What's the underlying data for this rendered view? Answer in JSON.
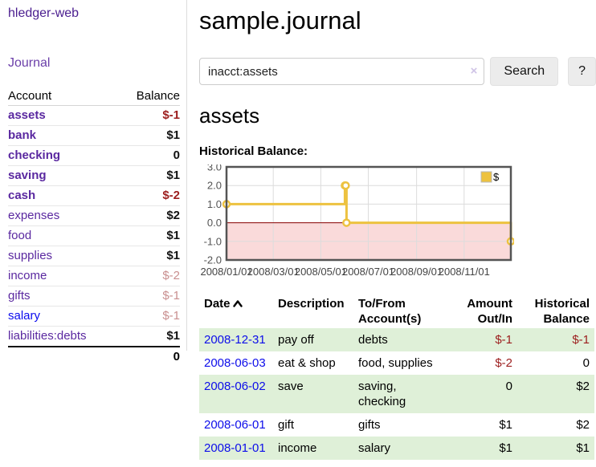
{
  "colors": {
    "purple_link": "#5a28a0",
    "blue_link": "#0b0bee",
    "negative_red": "#9c1d1d",
    "dim_negative_rose": "#c98f8f",
    "row_green": "#dff0d8",
    "chart_line_gold": "#edc240",
    "chart_negative_region_pink": "#fadada",
    "chart_zero_line": "#8b0000"
  },
  "sidebar": {
    "app_title": "hledger-web",
    "journal_link": "Journal",
    "accounts": {
      "headers": {
        "account": "Account",
        "balance": "Balance"
      },
      "rows": [
        {
          "name": "assets",
          "level": 1,
          "bold": true,
          "balance": "$-1",
          "balance_style": "neg"
        },
        {
          "name": "bank",
          "level": 2,
          "bold": true,
          "balance": "$1",
          "balance_style": "pos"
        },
        {
          "name": "checking",
          "level": 3,
          "bold": true,
          "balance": "0",
          "balance_style": "pos"
        },
        {
          "name": "saving",
          "level": 3,
          "bold": true,
          "balance": "$1",
          "balance_style": "pos"
        },
        {
          "name": "cash",
          "level": 2,
          "bold": true,
          "balance": "$-2",
          "balance_style": "neg"
        },
        {
          "name": "expenses",
          "level": 1,
          "bold": false,
          "balance": "$2",
          "balance_style": "pos"
        },
        {
          "name": "food",
          "level": 2,
          "bold": false,
          "balance": "$1",
          "balance_style": "pos"
        },
        {
          "name": "supplies",
          "level": 2,
          "bold": false,
          "balance": "$1",
          "balance_style": "pos"
        },
        {
          "name": "income",
          "level": 1,
          "bold": false,
          "balance": "$-2",
          "balance_style": "dimneg"
        },
        {
          "name": "gifts",
          "level": 2,
          "bold": false,
          "balance": "$-1",
          "balance_style": "dimneg"
        },
        {
          "name": "salary",
          "level": 2,
          "bold": false,
          "unvisited": true,
          "balance": "$-1",
          "balance_style": "dimneg"
        },
        {
          "name": "liabilities:debts",
          "level": 1,
          "bold": false,
          "balance": "$1",
          "balance_style": "pos"
        }
      ],
      "total": "0"
    }
  },
  "header": {
    "title": "sample.journal"
  },
  "search": {
    "value": "inacct:assets",
    "clear_icon": "×",
    "button_label": "Search",
    "help_label": "?"
  },
  "account_page": {
    "title": "assets",
    "chart_label": "Historical Balance:"
  },
  "chart_data": {
    "type": "line",
    "subtype": "step",
    "title": "Historical Balance:",
    "series": [
      {
        "name": "$",
        "points": [
          [
            "2008-01-01",
            1
          ],
          [
            "2008-06-01",
            2
          ],
          [
            "2008-06-02",
            2
          ],
          [
            "2008-06-03",
            0
          ],
          [
            "2008-12-31",
            -1
          ]
        ]
      }
    ],
    "x_ticks": [
      "2008/01/01",
      "2008/03/01",
      "2008/05/01",
      "2008/07/01",
      "2008/09/01",
      "2008/11/01"
    ],
    "y_ticks": [
      "3.0",
      "2.0",
      "1.0",
      "0.0",
      "-1.0",
      "-2.0"
    ],
    "ylim": [
      -2.0,
      3.0
    ],
    "xlim": [
      "2008-01-01",
      "2008-12-31"
    ],
    "grid": true,
    "legend_position": "top-right",
    "negative_region_shaded": true
  },
  "transactions": {
    "headers": [
      {
        "line1": "Date",
        "line2": "",
        "align": "left",
        "sorted_asc": true
      },
      {
        "line1": "Description",
        "line2": "",
        "align": "left"
      },
      {
        "line1": "To/From",
        "line2": "Account(s)",
        "align": "left"
      },
      {
        "line1": "Amount",
        "line2": "Out/In",
        "align": "right"
      },
      {
        "line1": "Historical",
        "line2": "Balance",
        "align": "right"
      }
    ],
    "rows": [
      {
        "date": "2008-12-31",
        "description": "pay off",
        "accounts": "debts",
        "amount": "$-1",
        "amount_neg": true,
        "balance": "$-1",
        "balance_neg": true
      },
      {
        "date": "2008-06-03",
        "description": "eat & shop",
        "accounts": "food, supplies",
        "amount": "$-2",
        "amount_neg": true,
        "balance": "0",
        "balance_neg": false
      },
      {
        "date": "2008-06-02",
        "description": "save",
        "accounts": "saving, checking",
        "amount": "0",
        "amount_neg": false,
        "balance": "$2",
        "balance_neg": false
      },
      {
        "date": "2008-06-01",
        "description": "gift",
        "accounts": "gifts",
        "amount": "$1",
        "amount_neg": false,
        "balance": "$2",
        "balance_neg": false
      },
      {
        "date": "2008-01-01",
        "description": "income",
        "accounts": "salary",
        "amount": "$1",
        "amount_neg": false,
        "balance": "$1",
        "balance_neg": false
      }
    ]
  }
}
